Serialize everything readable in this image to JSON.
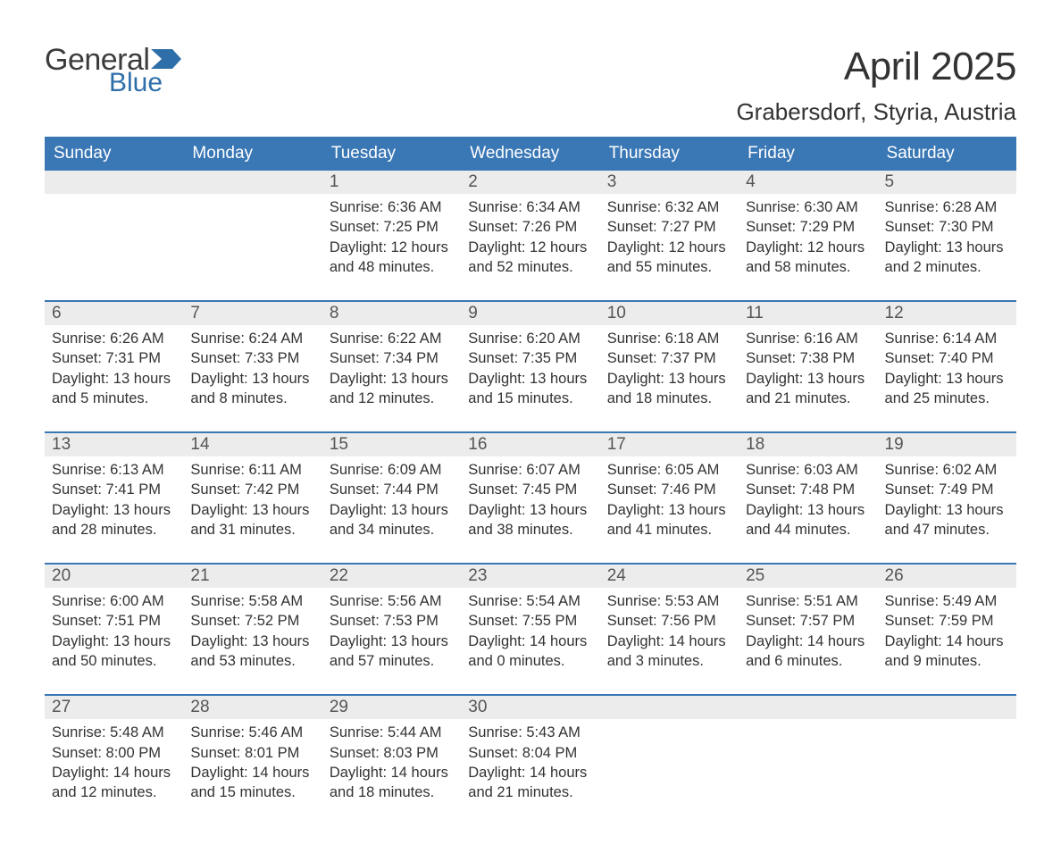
{
  "logo": {
    "text1": "General",
    "text2": "Blue"
  },
  "title": "April 2025",
  "subtitle": "Grabersdorf, Styria, Austria",
  "colors": {
    "header_bg": "#3a77b5",
    "header_text": "#ffffff",
    "daynum_bg": "#ececec",
    "daynum_text": "#555555",
    "body_text": "#333333",
    "rule": "#3a77b5",
    "logo_gray": "#3c3c3c",
    "logo_blue": "#2f6fa9",
    "flag_fill": "#2f6fa9"
  },
  "weekdays": [
    "Sunday",
    "Monday",
    "Tuesday",
    "Wednesday",
    "Thursday",
    "Friday",
    "Saturday"
  ],
  "weeks": [
    [
      {
        "n": "",
        "sr": "",
        "ss": "",
        "dl1": "",
        "dl2": ""
      },
      {
        "n": "",
        "sr": "",
        "ss": "",
        "dl1": "",
        "dl2": ""
      },
      {
        "n": "1",
        "sr": "Sunrise: 6:36 AM",
        "ss": "Sunset: 7:25 PM",
        "dl1": "Daylight: 12 hours",
        "dl2": "and 48 minutes."
      },
      {
        "n": "2",
        "sr": "Sunrise: 6:34 AM",
        "ss": "Sunset: 7:26 PM",
        "dl1": "Daylight: 12 hours",
        "dl2": "and 52 minutes."
      },
      {
        "n": "3",
        "sr": "Sunrise: 6:32 AM",
        "ss": "Sunset: 7:27 PM",
        "dl1": "Daylight: 12 hours",
        "dl2": "and 55 minutes."
      },
      {
        "n": "4",
        "sr": "Sunrise: 6:30 AM",
        "ss": "Sunset: 7:29 PM",
        "dl1": "Daylight: 12 hours",
        "dl2": "and 58 minutes."
      },
      {
        "n": "5",
        "sr": "Sunrise: 6:28 AM",
        "ss": "Sunset: 7:30 PM",
        "dl1": "Daylight: 13 hours",
        "dl2": "and 2 minutes."
      }
    ],
    [
      {
        "n": "6",
        "sr": "Sunrise: 6:26 AM",
        "ss": "Sunset: 7:31 PM",
        "dl1": "Daylight: 13 hours",
        "dl2": "and 5 minutes."
      },
      {
        "n": "7",
        "sr": "Sunrise: 6:24 AM",
        "ss": "Sunset: 7:33 PM",
        "dl1": "Daylight: 13 hours",
        "dl2": "and 8 minutes."
      },
      {
        "n": "8",
        "sr": "Sunrise: 6:22 AM",
        "ss": "Sunset: 7:34 PM",
        "dl1": "Daylight: 13 hours",
        "dl2": "and 12 minutes."
      },
      {
        "n": "9",
        "sr": "Sunrise: 6:20 AM",
        "ss": "Sunset: 7:35 PM",
        "dl1": "Daylight: 13 hours",
        "dl2": "and 15 minutes."
      },
      {
        "n": "10",
        "sr": "Sunrise: 6:18 AM",
        "ss": "Sunset: 7:37 PM",
        "dl1": "Daylight: 13 hours",
        "dl2": "and 18 minutes."
      },
      {
        "n": "11",
        "sr": "Sunrise: 6:16 AM",
        "ss": "Sunset: 7:38 PM",
        "dl1": "Daylight: 13 hours",
        "dl2": "and 21 minutes."
      },
      {
        "n": "12",
        "sr": "Sunrise: 6:14 AM",
        "ss": "Sunset: 7:40 PM",
        "dl1": "Daylight: 13 hours",
        "dl2": "and 25 minutes."
      }
    ],
    [
      {
        "n": "13",
        "sr": "Sunrise: 6:13 AM",
        "ss": "Sunset: 7:41 PM",
        "dl1": "Daylight: 13 hours",
        "dl2": "and 28 minutes."
      },
      {
        "n": "14",
        "sr": "Sunrise: 6:11 AM",
        "ss": "Sunset: 7:42 PM",
        "dl1": "Daylight: 13 hours",
        "dl2": "and 31 minutes."
      },
      {
        "n": "15",
        "sr": "Sunrise: 6:09 AM",
        "ss": "Sunset: 7:44 PM",
        "dl1": "Daylight: 13 hours",
        "dl2": "and 34 minutes."
      },
      {
        "n": "16",
        "sr": "Sunrise: 6:07 AM",
        "ss": "Sunset: 7:45 PM",
        "dl1": "Daylight: 13 hours",
        "dl2": "and 38 minutes."
      },
      {
        "n": "17",
        "sr": "Sunrise: 6:05 AM",
        "ss": "Sunset: 7:46 PM",
        "dl1": "Daylight: 13 hours",
        "dl2": "and 41 minutes."
      },
      {
        "n": "18",
        "sr": "Sunrise: 6:03 AM",
        "ss": "Sunset: 7:48 PM",
        "dl1": "Daylight: 13 hours",
        "dl2": "and 44 minutes."
      },
      {
        "n": "19",
        "sr": "Sunrise: 6:02 AM",
        "ss": "Sunset: 7:49 PM",
        "dl1": "Daylight: 13 hours",
        "dl2": "and 47 minutes."
      }
    ],
    [
      {
        "n": "20",
        "sr": "Sunrise: 6:00 AM",
        "ss": "Sunset: 7:51 PM",
        "dl1": "Daylight: 13 hours",
        "dl2": "and 50 minutes."
      },
      {
        "n": "21",
        "sr": "Sunrise: 5:58 AM",
        "ss": "Sunset: 7:52 PM",
        "dl1": "Daylight: 13 hours",
        "dl2": "and 53 minutes."
      },
      {
        "n": "22",
        "sr": "Sunrise: 5:56 AM",
        "ss": "Sunset: 7:53 PM",
        "dl1": "Daylight: 13 hours",
        "dl2": "and 57 minutes."
      },
      {
        "n": "23",
        "sr": "Sunrise: 5:54 AM",
        "ss": "Sunset: 7:55 PM",
        "dl1": "Daylight: 14 hours",
        "dl2": "and 0 minutes."
      },
      {
        "n": "24",
        "sr": "Sunrise: 5:53 AM",
        "ss": "Sunset: 7:56 PM",
        "dl1": "Daylight: 14 hours",
        "dl2": "and 3 minutes."
      },
      {
        "n": "25",
        "sr": "Sunrise: 5:51 AM",
        "ss": "Sunset: 7:57 PM",
        "dl1": "Daylight: 14 hours",
        "dl2": "and 6 minutes."
      },
      {
        "n": "26",
        "sr": "Sunrise: 5:49 AM",
        "ss": "Sunset: 7:59 PM",
        "dl1": "Daylight: 14 hours",
        "dl2": "and 9 minutes."
      }
    ],
    [
      {
        "n": "27",
        "sr": "Sunrise: 5:48 AM",
        "ss": "Sunset: 8:00 PM",
        "dl1": "Daylight: 14 hours",
        "dl2": "and 12 minutes."
      },
      {
        "n": "28",
        "sr": "Sunrise: 5:46 AM",
        "ss": "Sunset: 8:01 PM",
        "dl1": "Daylight: 14 hours",
        "dl2": "and 15 minutes."
      },
      {
        "n": "29",
        "sr": "Sunrise: 5:44 AM",
        "ss": "Sunset: 8:03 PM",
        "dl1": "Daylight: 14 hours",
        "dl2": "and 18 minutes."
      },
      {
        "n": "30",
        "sr": "Sunrise: 5:43 AM",
        "ss": "Sunset: 8:04 PM",
        "dl1": "Daylight: 14 hours",
        "dl2": "and 21 minutes."
      },
      {
        "n": "",
        "sr": "",
        "ss": "",
        "dl1": "",
        "dl2": ""
      },
      {
        "n": "",
        "sr": "",
        "ss": "",
        "dl1": "",
        "dl2": ""
      },
      {
        "n": "",
        "sr": "",
        "ss": "",
        "dl1": "",
        "dl2": ""
      }
    ]
  ]
}
